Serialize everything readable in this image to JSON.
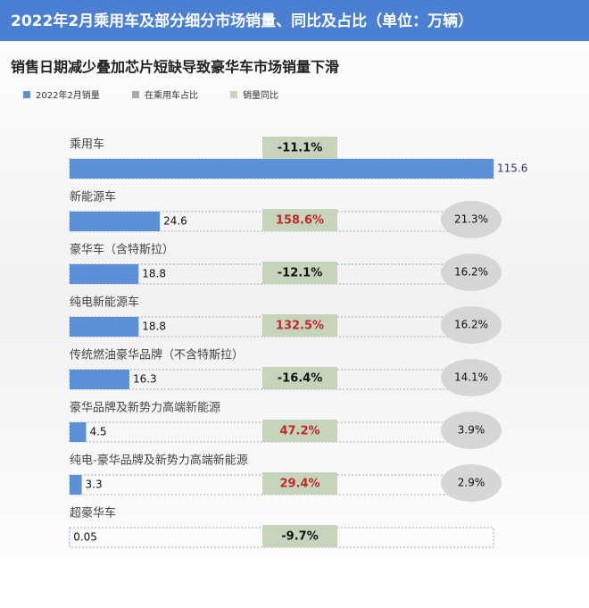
{
  "chart_data": {
    "type": "bar",
    "title": "2022年2月乘用车及部分细分市场销量、同比及占比（单位：万辆）",
    "subtitle": "销售日期减少叠加芯片短缺导致豪华车市场销量下滑",
    "categories": [
      "乘用车",
      "新能源车",
      "豪华车（含特斯拉）",
      "纯电新能源车",
      "传统燃油豪华品牌（不含特斯拉）",
      "豪华品牌及新势力高端新能源",
      "纯电-豪华品牌及新势力高端新能源",
      "超豪华车"
    ],
    "series": [
      {
        "name": "2022年2月销量",
        "color": "#5b8fd6",
        "values": [
          115.6,
          24.6,
          18.8,
          18.8,
          16.3,
          4.5,
          3.3,
          0.05
        ]
      },
      {
        "name": "在乘用车占比",
        "color": "#d6d6d6",
        "values": [
          null,
          21.3,
          16.2,
          16.2,
          14.1,
          3.9,
          2.9,
          null
        ],
        "value_labels": [
          null,
          "21.3%",
          "16.2%",
          "16.2%",
          "14.1%",
          "3.9%",
          "2.9%",
          null
        ]
      },
      {
        "name": "销量同比",
        "color": "#c6d4bc",
        "values": [
          -11.1,
          158.6,
          -12.1,
          132.5,
          -16.4,
          47.2,
          29.4,
          -9.7
        ],
        "value_labels": [
          "-11.1%",
          "158.6%",
          "-12.1%",
          "132.5%",
          "-16.4%",
          "47.2%",
          "29.4%",
          "-9.7%"
        ]
      }
    ]
  }
}
